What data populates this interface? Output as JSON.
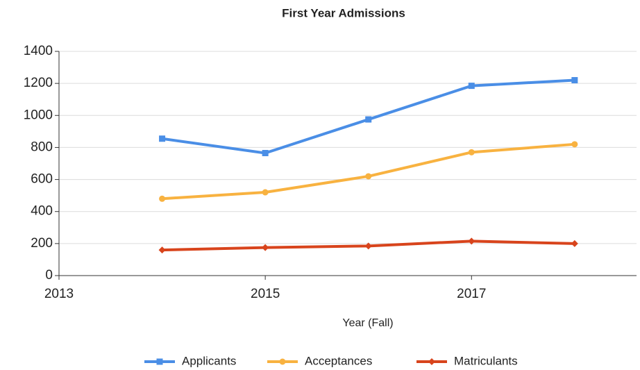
{
  "chart_data": {
    "type": "line",
    "title": "First Year Admissions",
    "x_label": "Year (Fall)",
    "x": [
      2014,
      2015,
      2016,
      2017,
      2018
    ],
    "series": [
      {
        "name": "Applicants",
        "color": "#4a8ee6",
        "values": [
          855,
          765,
          975,
          1185,
          1220
        ]
      },
      {
        "name": "Acceptances",
        "color": "#f8b240",
        "values": [
          480,
          520,
          620,
          770,
          820
        ]
      },
      {
        "name": "Matriculants",
        "color": "#d8441c",
        "values": [
          160,
          175,
          185,
          215,
          200
        ]
      }
    ],
    "xlim": [
      2013,
      2018.6
    ],
    "xticks": [
      2013,
      2015,
      2017
    ],
    "ylim": [
      0,
      1400
    ],
    "yticks": [
      0,
      200,
      400,
      600,
      800,
      1000,
      1200,
      1400
    ],
    "grid": true,
    "legend": "bottom"
  }
}
